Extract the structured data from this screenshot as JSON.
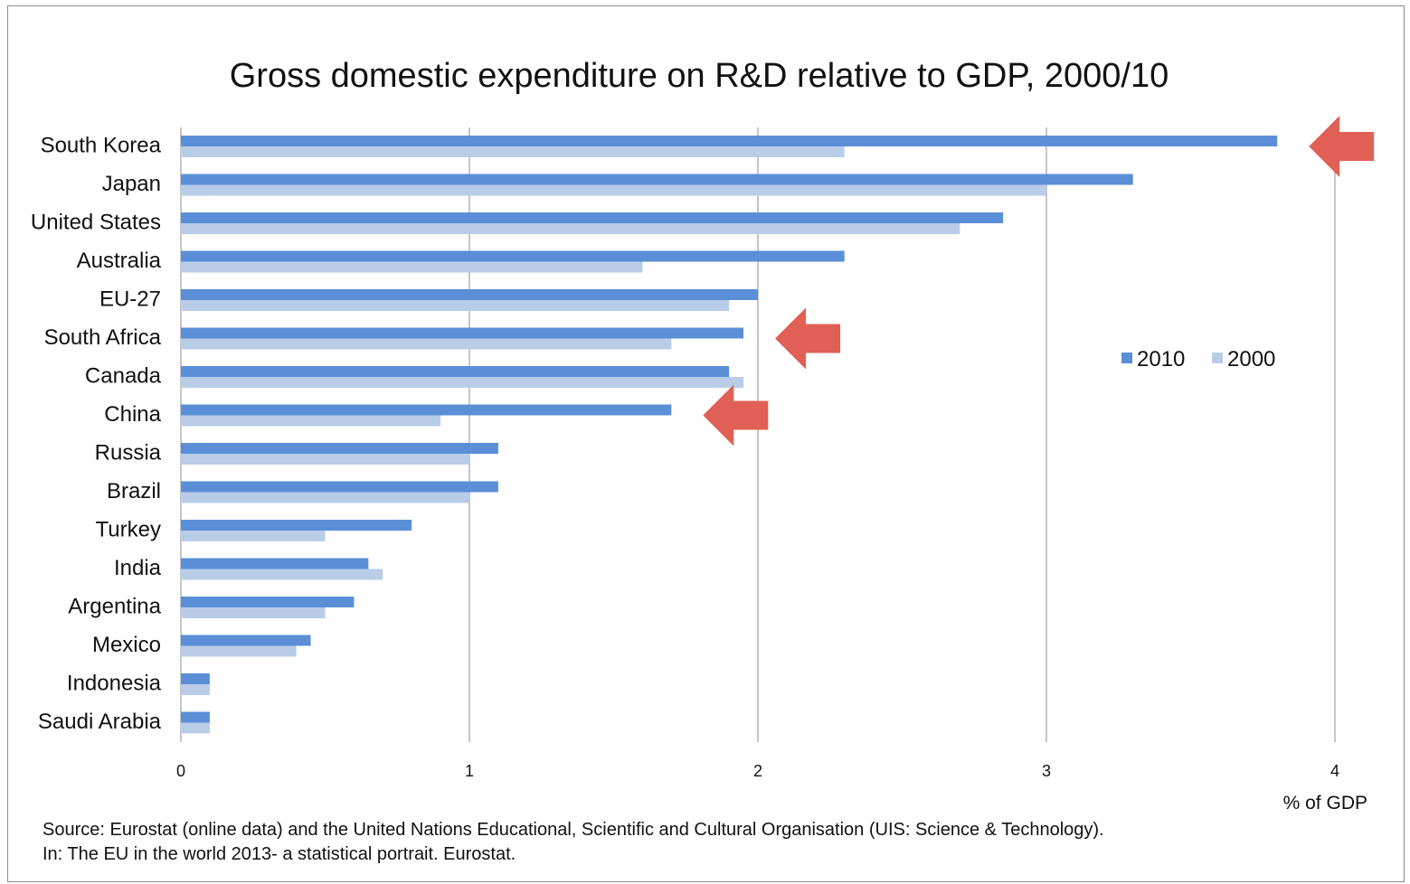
{
  "chart_data": {
    "type": "bar",
    "orientation": "horizontal",
    "title": "Gross domestic expenditure on R&D relative to GDP, 2000/10",
    "xlabel": "% of GDP",
    "xlim": [
      0,
      4
    ],
    "x_ticks": [
      "0",
      "1",
      "2",
      "3",
      "4"
    ],
    "grid": true,
    "legend_position": "right",
    "categories": [
      "South Korea",
      "Japan",
      "United States",
      "Australia",
      "EU-27",
      "South Africa",
      "Canada",
      "China",
      "Russia",
      "Brazil",
      "Turkey",
      "India",
      "Argentina",
      "Mexico",
      "Indonesia",
      "Saudi Arabia"
    ],
    "series": [
      {
        "name": "2010",
        "color": "#5a8fd8",
        "values": [
          3.8,
          3.3,
          2.85,
          2.3,
          2.0,
          1.95,
          1.9,
          1.7,
          1.1,
          1.1,
          0.8,
          0.65,
          0.6,
          0.45,
          0.1,
          0.1
        ]
      },
      {
        "name": "2000",
        "color": "#b9cde8",
        "values": [
          2.3,
          3.0,
          2.7,
          1.6,
          1.9,
          1.7,
          1.95,
          0.9,
          1.0,
          1.0,
          0.5,
          0.7,
          0.5,
          0.4,
          0.1,
          0.1
        ]
      }
    ],
    "annotations": [
      {
        "type": "arrow",
        "color": "#e06055",
        "points_to": "South Korea"
      },
      {
        "type": "arrow",
        "color": "#e06055",
        "points_to": "South Africa"
      },
      {
        "type": "arrow",
        "color": "#e06055",
        "points_to": "China"
      }
    ]
  },
  "source": {
    "line1": "Source: Eurostat (online data) and the United Nations Educational, Scientific and Cultural Organisation (UIS: Science & Technology).",
    "line2": "In: The EU in the world 2013- a statistical portrait. Eurostat."
  }
}
